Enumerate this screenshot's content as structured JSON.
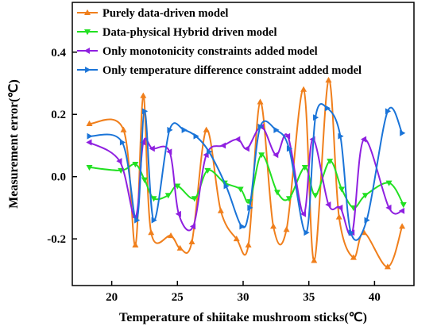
{
  "chart_data": {
    "type": "line",
    "title": "",
    "xlabel": "Temperature of shiitake mushroom sticks(℃)",
    "ylabel": "Measurement error(℃)",
    "xlim": [
      17,
      43
    ],
    "ylim": [
      -0.35,
      0.56
    ],
    "xticks": [
      20,
      25,
      30,
      35,
      40
    ],
    "yticks": [
      -0.2,
      0.0,
      0.2,
      0.4
    ],
    "x_tick_labels": [
      "20",
      "25",
      "30",
      "35",
      "40"
    ],
    "y_tick_labels": [
      "-0.2",
      "0.0",
      "0.2",
      "0.4"
    ],
    "grid": false,
    "legend_position": "top-left",
    "series": [
      {
        "name": "Purely data-driven model",
        "color": "#f07f1c",
        "marker": "triangle-up",
        "x": [
          18.3,
          20.9,
          21.8,
          22.4,
          23.0,
          24.5,
          25.2,
          26.1,
          27.2,
          28.3,
          29.5,
          30.4,
          31.3,
          32.3,
          33.3,
          34.6,
          35.4,
          36.5,
          37.3,
          38.4,
          39.2,
          41.0,
          42.1
        ],
        "y": [
          0.17,
          0.15,
          -0.22,
          0.26,
          -0.18,
          -0.19,
          -0.23,
          -0.21,
          0.15,
          -0.11,
          -0.2,
          -0.22,
          0.24,
          -0.16,
          -0.17,
          0.28,
          -0.27,
          0.31,
          -0.13,
          -0.26,
          -0.18,
          -0.29,
          -0.16
        ]
      },
      {
        "name": "Data-physical Hybrid driven model",
        "color": "#22e022",
        "marker": "triangle-down",
        "x": [
          18.3,
          20.7,
          21.8,
          22.5,
          23.2,
          24.3,
          25.0,
          26.3,
          27.3,
          28.6,
          29.8,
          30.5,
          31.4,
          32.6,
          33.5,
          34.7,
          35.5,
          36.6,
          37.5,
          38.4,
          39.3,
          41.1,
          42.2
        ],
        "y": [
          0.03,
          0.02,
          0.04,
          -0.01,
          -0.07,
          -0.06,
          -0.03,
          -0.07,
          0.02,
          -0.02,
          -0.04,
          -0.08,
          0.07,
          -0.05,
          -0.07,
          0.03,
          -0.06,
          0.05,
          -0.04,
          -0.1,
          -0.06,
          -0.02,
          -0.09
        ]
      },
      {
        "name": "Only monotonicity constraints added model",
        "color": "#8f20e0",
        "marker": "triangle-left",
        "x": [
          18.3,
          20.6,
          21.8,
          22.4,
          23.1,
          24.4,
          25.1,
          26.2,
          27.2,
          28.5,
          29.6,
          30.3,
          31.4,
          32.5,
          33.4,
          34.6,
          35.3,
          36.5,
          37.4,
          38.3,
          39.2,
          41.1,
          42.1
        ],
        "y": [
          0.11,
          0.05,
          -0.13,
          0.11,
          0.09,
          0.08,
          -0.12,
          -0.16,
          0.07,
          0.1,
          0.12,
          0.09,
          0.16,
          0.07,
          0.13,
          -0.12,
          0.12,
          -0.09,
          -0.1,
          -0.18,
          0.12,
          -0.1,
          -0.11
        ]
      },
      {
        "name": "Only temperature difference constraint added model",
        "color": "#1a74d8",
        "marker": "triangle-right",
        "x": [
          18.3,
          20.8,
          21.9,
          22.5,
          23.2,
          24.4,
          25.5,
          26.4,
          27.4,
          28.7,
          29.9,
          30.5,
          31.3,
          32.5,
          33.5,
          34.8,
          35.5,
          36.4,
          37.4,
          38.2,
          39.4,
          41.0,
          42.1
        ],
        "y": [
          0.13,
          0.11,
          -0.14,
          0.21,
          -0.14,
          0.15,
          0.15,
          0.13,
          0.08,
          -0.03,
          -0.16,
          -0.1,
          0.16,
          0.15,
          0.09,
          -0.18,
          0.19,
          0.22,
          0.13,
          -0.18,
          -0.14,
          0.21,
          0.14
        ]
      }
    ]
  }
}
